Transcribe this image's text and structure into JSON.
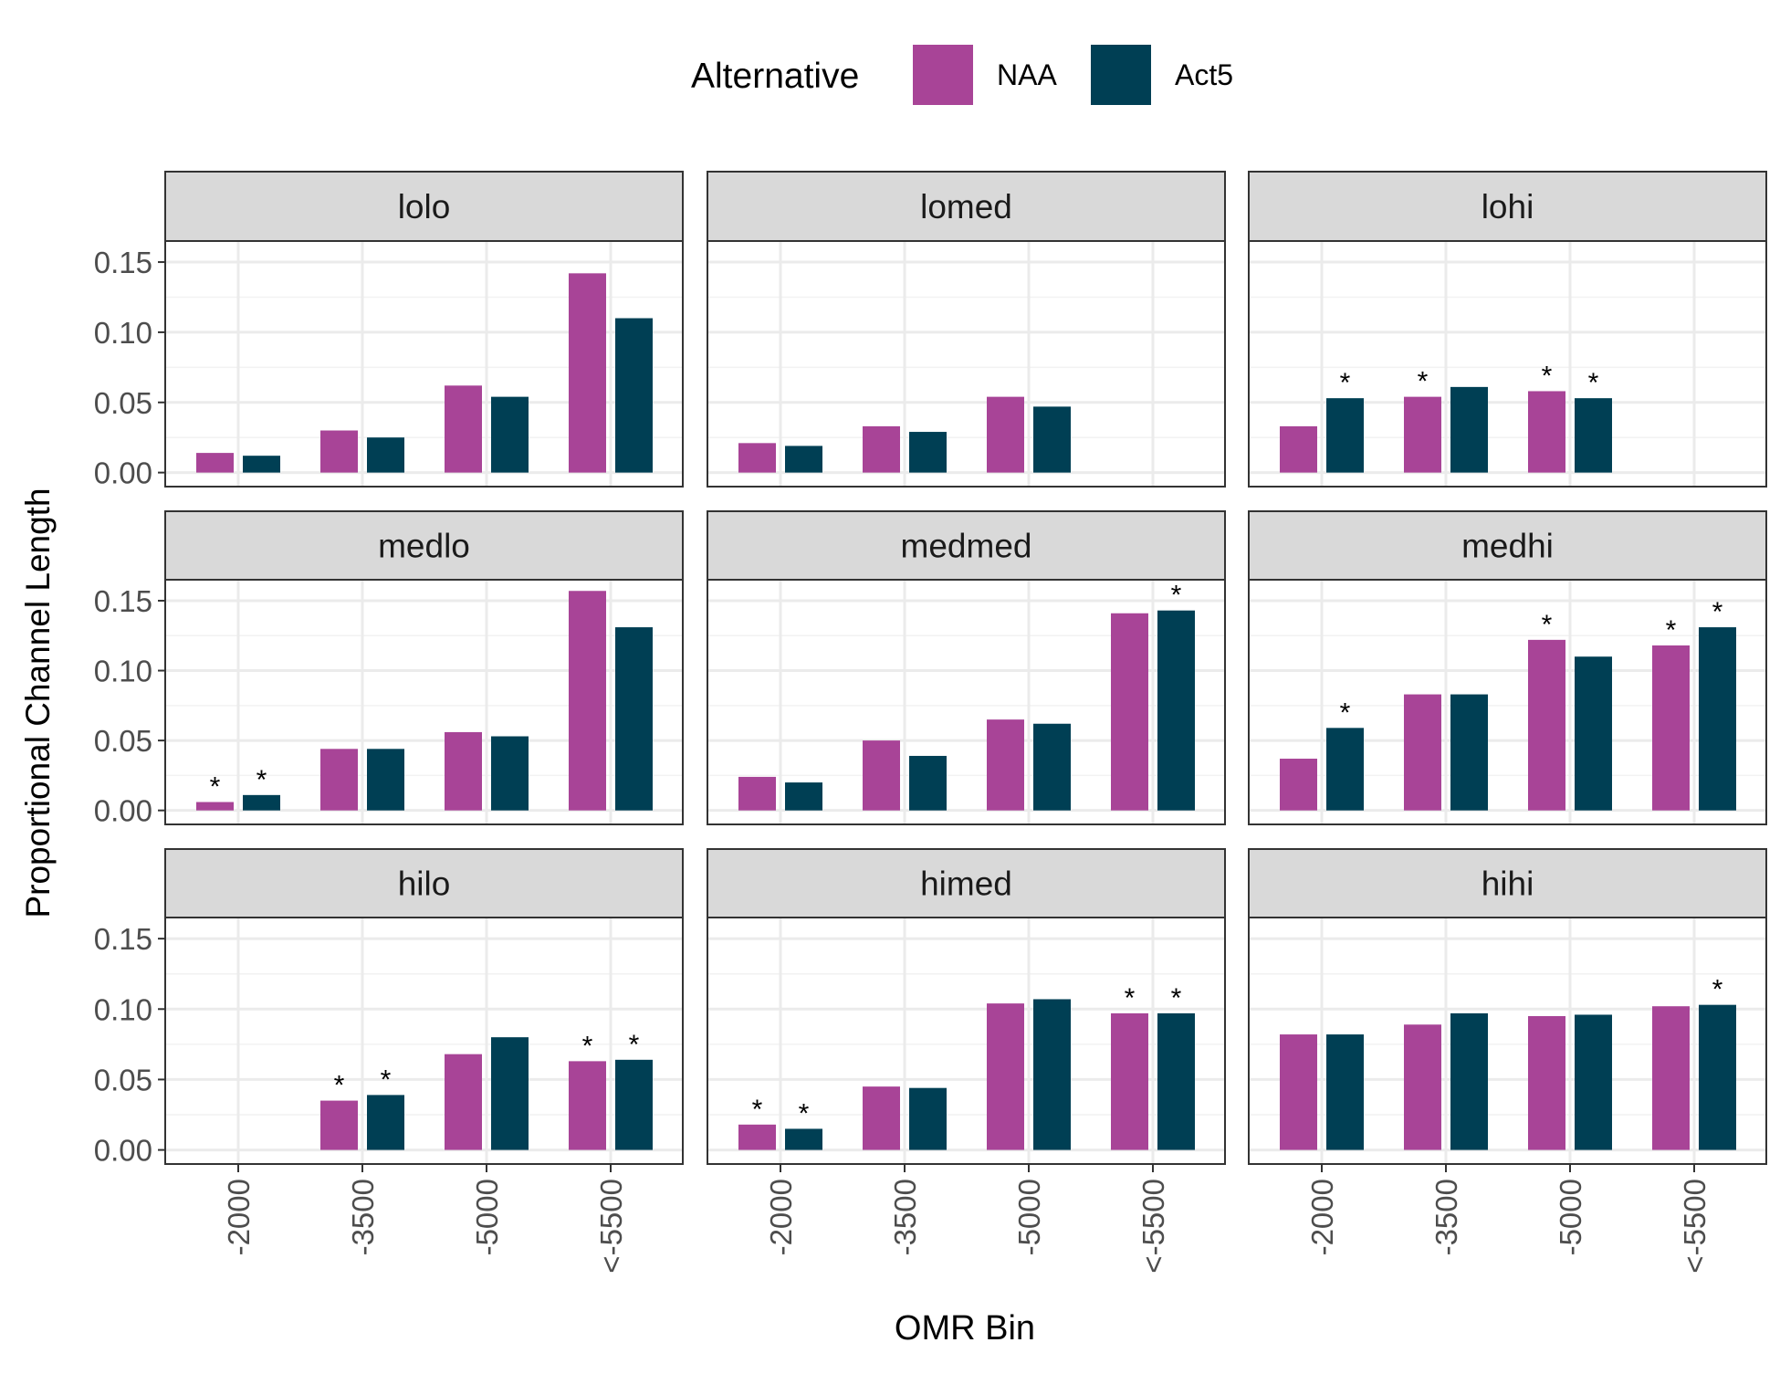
{
  "chart_data": {
    "type": "bar",
    "xlabel": "OMR Bin",
    "ylabel": "Proportional Channel Length",
    "ylim": [
      -0.01,
      0.165
    ],
    "yticks": [
      0.0,
      0.05,
      0.1,
      0.15
    ],
    "ytick_labels": [
      "0.00",
      "0.05",
      "0.10",
      "0.15"
    ],
    "grid": true,
    "legend": {
      "title": "Alternative",
      "position": "top"
    },
    "categories": [
      "-2000",
      "-3500",
      "-5000",
      "<-5500"
    ],
    "series": [
      {
        "name": "NAA",
        "color": "#a84497"
      },
      {
        "name": "Act5",
        "color": "#003f54"
      }
    ],
    "panels": [
      {
        "title": "lolo",
        "values": {
          "NAA": [
            0.014,
            0.03,
            0.062,
            0.142
          ],
          "Act5": [
            0.012,
            0.025,
            0.054,
            0.11
          ]
        },
        "significant": {
          "NAA": [
            false,
            false,
            false,
            false
          ],
          "Act5": [
            false,
            false,
            false,
            false
          ]
        }
      },
      {
        "title": "lomed",
        "values": {
          "NAA": [
            0.021,
            0.033,
            0.054,
            null
          ],
          "Act5": [
            0.019,
            0.029,
            0.047,
            null
          ]
        },
        "significant": {
          "NAA": [
            false,
            false,
            false,
            false
          ],
          "Act5": [
            false,
            false,
            false,
            false
          ]
        }
      },
      {
        "title": "lohi",
        "values": {
          "NAA": [
            0.033,
            0.054,
            0.058,
            null
          ],
          "Act5": [
            0.053,
            0.061,
            0.053,
            null
          ]
        },
        "significant": {
          "NAA": [
            false,
            true,
            true,
            false
          ],
          "Act5": [
            true,
            false,
            true,
            false
          ]
        }
      },
      {
        "title": "medlo",
        "values": {
          "NAA": [
            0.006,
            0.044,
            0.056,
            0.157
          ],
          "Act5": [
            0.011,
            0.044,
            0.053,
            0.131
          ]
        },
        "significant": {
          "NAA": [
            true,
            false,
            false,
            false
          ],
          "Act5": [
            true,
            false,
            false,
            false
          ]
        }
      },
      {
        "title": "medmed",
        "values": {
          "NAA": [
            0.024,
            0.05,
            0.065,
            0.141
          ],
          "Act5": [
            0.02,
            0.039,
            0.062,
            0.143
          ]
        },
        "significant": {
          "NAA": [
            false,
            false,
            false,
            false
          ],
          "Act5": [
            false,
            false,
            false,
            true
          ]
        }
      },
      {
        "title": "medhi",
        "values": {
          "NAA": [
            0.037,
            0.083,
            0.122,
            0.118
          ],
          "Act5": [
            0.059,
            0.083,
            0.11,
            0.131
          ]
        },
        "significant": {
          "NAA": [
            false,
            false,
            true,
            true
          ],
          "Act5": [
            true,
            false,
            false,
            true
          ]
        }
      },
      {
        "title": "hilo",
        "values": {
          "NAA": [
            null,
            0.035,
            0.068,
            0.063
          ],
          "Act5": [
            null,
            0.039,
            0.08,
            0.064
          ]
        },
        "significant": {
          "NAA": [
            false,
            true,
            false,
            true
          ],
          "Act5": [
            false,
            true,
            false,
            true
          ]
        }
      },
      {
        "title": "himed",
        "values": {
          "NAA": [
            0.018,
            0.045,
            0.104,
            0.097
          ],
          "Act5": [
            0.015,
            0.044,
            0.107,
            0.097
          ]
        },
        "significant": {
          "NAA": [
            true,
            false,
            false,
            true
          ],
          "Act5": [
            true,
            false,
            false,
            true
          ]
        }
      },
      {
        "title": "hihi",
        "values": {
          "NAA": [
            0.082,
            0.089,
            0.095,
            0.102
          ],
          "Act5": [
            0.082,
            0.097,
            0.096,
            0.103
          ]
        },
        "significant": {
          "NAA": [
            false,
            false,
            false,
            false
          ],
          "Act5": [
            false,
            false,
            false,
            true
          ]
        }
      }
    ],
    "annotation_symbol": "*"
  }
}
